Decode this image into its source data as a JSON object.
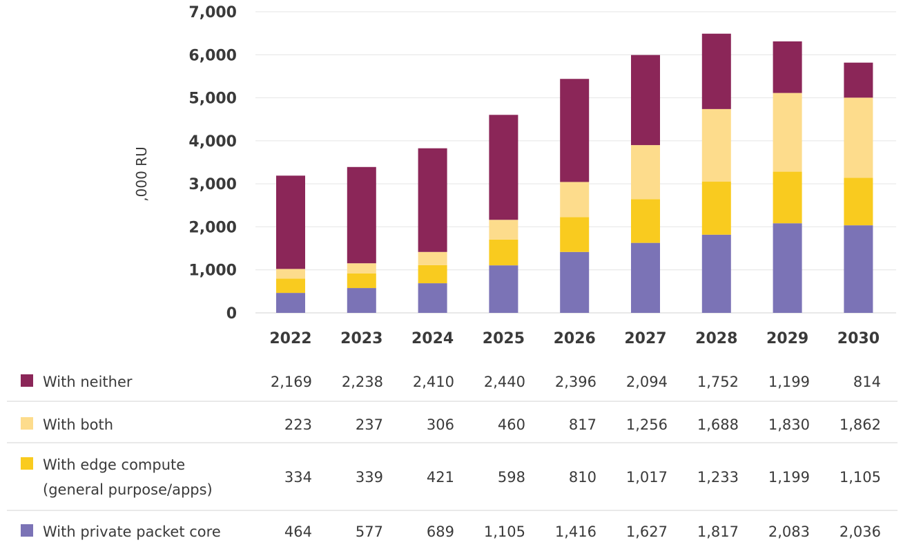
{
  "chart_data": {
    "type": "bar",
    "stacked": true,
    "categories": [
      "2022",
      "2023",
      "2024",
      "2025",
      "2026",
      "2027",
      "2028",
      "2029",
      "2030"
    ],
    "ylabel": ",000 RU",
    "ylim": [
      0,
      7000
    ],
    "yticks": [
      0,
      1000,
      2000,
      3000,
      4000,
      5000,
      6000,
      7000
    ],
    "ytick_labels": [
      "0",
      "1,000",
      "2,000",
      "3,000",
      "4,000",
      "5,000",
      "6,000",
      "7,000"
    ],
    "grid": true,
    "series": [
      {
        "name": "With private packet core",
        "color": "#7b73b6",
        "values": [
          464,
          577,
          689,
          1105,
          1416,
          1627,
          1817,
          2083,
          2036
        ],
        "labels": [
          "464",
          "577",
          "689",
          "1,105",
          "1,416",
          "1,627",
          "1,817",
          "2,083",
          "2,036"
        ]
      },
      {
        "name": "With edge compute (general purpose/apps)",
        "color": "#f9cb1f",
        "values": [
          334,
          339,
          421,
          598,
          810,
          1017,
          1233,
          1199,
          1105
        ],
        "labels": [
          "334",
          "339",
          "421",
          "598",
          "810",
          "1,017",
          "1,233",
          "1,199",
          "1,105"
        ]
      },
      {
        "name": "With both",
        "color": "#fddc8c",
        "values": [
          223,
          237,
          306,
          460,
          817,
          1256,
          1688,
          1830,
          1862
        ],
        "labels": [
          "223",
          "237",
          "306",
          "460",
          "817",
          "1,256",
          "1,688",
          "1,830",
          "1,862"
        ]
      },
      {
        "name": "With neither",
        "color": "#8b2658",
        "values": [
          2169,
          2238,
          2410,
          2440,
          2396,
          2094,
          1752,
          1199,
          814
        ],
        "labels": [
          "2,169",
          "2,238",
          "2,410",
          "2,440",
          "2,396",
          "2,094",
          "1,752",
          "1,199",
          "814"
        ]
      }
    ],
    "table_rows": [
      {
        "series": 3,
        "label_lines": [
          "With neither"
        ]
      },
      {
        "series": 2,
        "label_lines": [
          "With both"
        ]
      },
      {
        "series": 1,
        "label_lines": [
          "With edge compute",
          "(general purpose/apps)"
        ]
      },
      {
        "series": 0,
        "label_lines": [
          "With private packet core"
        ]
      }
    ]
  }
}
